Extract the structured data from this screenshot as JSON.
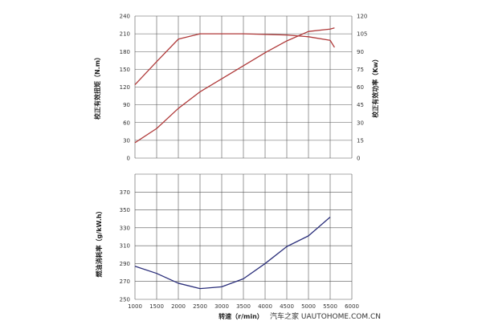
{
  "chart_data": [
    {
      "type": "line",
      "panel": "upper",
      "x": [
        1000,
        1500,
        2000,
        2500,
        3000,
        3500,
        4000,
        4500,
        5000,
        5500,
        5600
      ],
      "xlim": [
        1000,
        6000
      ],
      "xticks": [
        "1000",
        "1500",
        "2000",
        "2500",
        "3000",
        "3500",
        "4000",
        "4500",
        "5000",
        "5500",
        "6000"
      ],
      "left_axis": {
        "label": "校正有效扭矩（N.m）",
        "ylim": [
          0,
          240
        ],
        "ticks": [
          "0",
          "30",
          "60",
          "90",
          "120",
          "150",
          "180",
          "210",
          "240"
        ]
      },
      "right_axis": {
        "label": "校正有效功率（Kw）",
        "ylim": [
          0,
          120
        ],
        "ticks": [
          "0",
          "15",
          "30",
          "45",
          "60",
          "75",
          "90",
          "105",
          "120"
        ]
      },
      "series": [
        {
          "axis": "left",
          "color": "#b03a3a",
          "values": [
            124,
            163,
            201,
            210,
            210,
            210,
            209,
            208,
            205,
            199,
            187
          ]
        },
        {
          "axis": "right",
          "color": "#b03a3a",
          "x": [
            1000,
            1500,
            2000,
            2500,
            3000,
            3500,
            4000,
            4500,
            5000,
            5500,
            5600
          ],
          "values": [
            13,
            25,
            42,
            56,
            67,
            78,
            89,
            99,
            107,
            109,
            110
          ]
        }
      ],
      "grid": true
    },
    {
      "type": "line",
      "panel": "lower",
      "x": [
        1000,
        1500,
        2000,
        2500,
        3000,
        3500,
        4000,
        4500,
        5000,
        5500
      ],
      "xlim": [
        1000,
        6000
      ],
      "xticks": [
        "1000",
        "1500",
        "2000",
        "2500",
        "3000",
        "3500",
        "4000",
        "4500",
        "5000",
        "5500",
        "6000"
      ],
      "xlabel": "转速（r/min）",
      "left_axis": {
        "label": "燃油消耗率（g/kW.h）",
        "ylim": [
          250,
          390
        ],
        "ticks": [
          "250",
          "270",
          "290",
          "310",
          "330",
          "350",
          "370"
        ]
      },
      "series": [
        {
          "axis": "left",
          "color": "#2a2e7a",
          "values": [
            287,
            279,
            268,
            262,
            264,
            273,
            290,
            309,
            321,
            342
          ]
        }
      ],
      "grid": true
    }
  ],
  "watermark": "汽车之家 UAUTOHOME.COM.CN",
  "colors": {
    "grid": "#555555",
    "red": "#b03a3a",
    "blue": "#2a2e7a"
  }
}
